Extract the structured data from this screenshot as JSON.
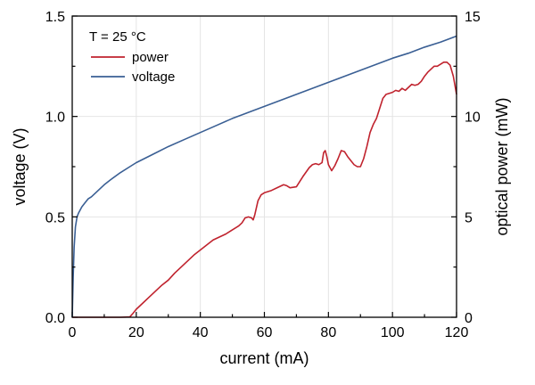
{
  "chart_data": {
    "type": "line",
    "annotation": "T = 25 °C",
    "xlabel": "current (mA)",
    "ylabel_left": "voltage (V)",
    "ylabel_right": "optical power (mW)",
    "xlim": [
      0,
      120
    ],
    "ylim_left": [
      0,
      1.5
    ],
    "ylim_right": [
      0,
      15
    ],
    "x_ticks": [
      0,
      20,
      40,
      60,
      80,
      100,
      120
    ],
    "y_left_ticks": [
      0.0,
      0.5,
      1.0,
      1.5
    ],
    "y_right_ticks": [
      0,
      5,
      10,
      15
    ],
    "x_tick_labels": [
      "0",
      "20",
      "40",
      "60",
      "80",
      "100",
      "120"
    ],
    "y_left_tick_labels": [
      "0.0",
      "0.5",
      "1.0",
      "1.5"
    ],
    "y_right_tick_labels": [
      "0",
      "5",
      "10",
      "15"
    ],
    "grid": true,
    "legend_position": "top-left",
    "series": [
      {
        "name": "power",
        "axis": "right",
        "color": "#c0232e",
        "x": [
          0,
          5,
          10,
          15,
          18,
          19,
          20,
          22,
          24,
          26,
          28,
          30,
          32,
          34,
          36,
          38,
          40,
          42,
          44,
          46,
          48,
          50,
          52,
          53,
          54,
          55,
          56,
          56.5,
          57,
          58,
          59,
          60,
          62,
          64,
          66,
          67,
          68,
          70,
          72,
          74,
          75,
          76,
          77,
          78,
          78.5,
          79,
          79.5,
          80,
          81,
          82,
          83,
          84,
          85,
          86,
          87,
          88,
          89,
          90,
          91,
          92,
          93,
          94,
          95,
          96,
          97,
          98,
          99,
          100,
          101,
          102,
          103,
          104,
          105,
          106,
          107,
          108,
          109,
          110,
          111,
          112,
          113,
          114,
          115,
          116,
          117,
          118,
          119,
          120
        ],
        "y": [
          0,
          0,
          0,
          0,
          0.02,
          0.2,
          0.4,
          0.7,
          1.0,
          1.3,
          1.6,
          1.85,
          2.2,
          2.5,
          2.8,
          3.1,
          3.35,
          3.6,
          3.85,
          4.0,
          4.15,
          4.35,
          4.55,
          4.7,
          4.95,
          5.0,
          4.95,
          4.85,
          5.1,
          5.8,
          6.1,
          6.2,
          6.3,
          6.45,
          6.6,
          6.55,
          6.45,
          6.5,
          7.0,
          7.45,
          7.6,
          7.65,
          7.6,
          7.7,
          8.2,
          8.3,
          8.0,
          7.6,
          7.3,
          7.55,
          7.9,
          8.3,
          8.25,
          8.0,
          7.8,
          7.6,
          7.5,
          7.5,
          7.9,
          8.5,
          9.2,
          9.6,
          9.9,
          10.4,
          10.9,
          11.1,
          11.15,
          11.2,
          11.3,
          11.25,
          11.4,
          11.3,
          11.45,
          11.6,
          11.55,
          11.6,
          11.75,
          12.0,
          12.2,
          12.35,
          12.5,
          12.5,
          12.6,
          12.7,
          12.7,
          12.55,
          12.0,
          11.1
        ]
      },
      {
        "name": "voltage",
        "axis": "left",
        "color": "#3a5f94",
        "x": [
          0,
          0.3,
          0.6,
          1,
          1.5,
          2,
          3,
          4,
          5,
          6,
          8,
          10,
          12,
          15,
          18,
          20,
          25,
          30,
          35,
          40,
          45,
          50,
          55,
          60,
          65,
          70,
          75,
          80,
          85,
          90,
          95,
          100,
          105,
          110,
          115,
          120
        ],
        "y": [
          0.0,
          0.2,
          0.35,
          0.45,
          0.5,
          0.52,
          0.55,
          0.57,
          0.59,
          0.6,
          0.63,
          0.66,
          0.685,
          0.72,
          0.75,
          0.77,
          0.81,
          0.85,
          0.885,
          0.92,
          0.955,
          0.99,
          1.02,
          1.05,
          1.08,
          1.11,
          1.14,
          1.17,
          1.2,
          1.23,
          1.26,
          1.29,
          1.315,
          1.345,
          1.37,
          1.4
        ]
      }
    ]
  }
}
